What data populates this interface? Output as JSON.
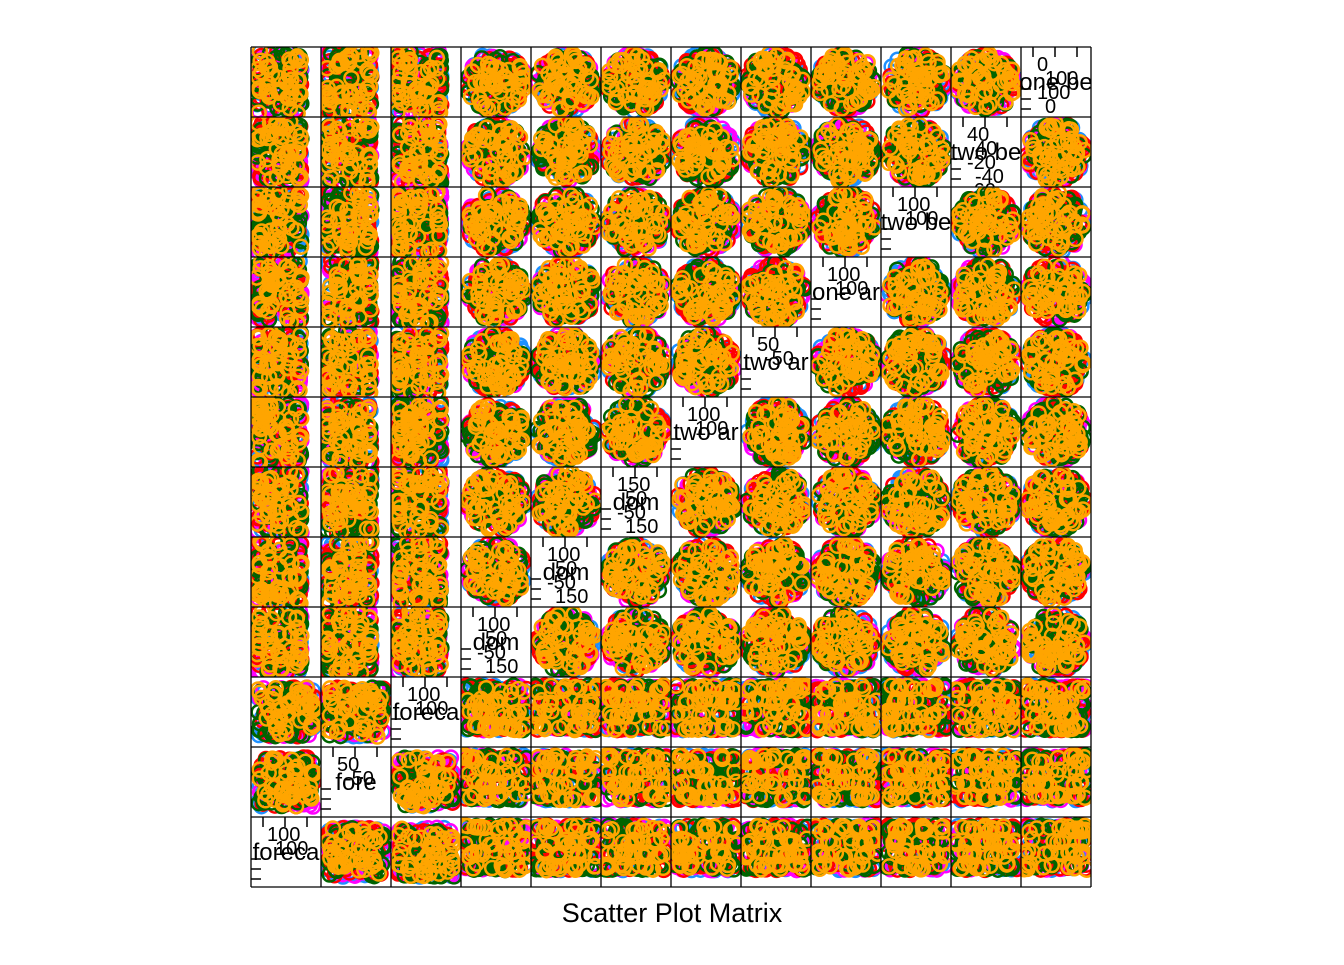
{
  "chart_data": {
    "type": "scatter",
    "kind": "scatter-plot-matrix",
    "xlabel": "Scatter Plot Matrix",
    "grid": false,
    "legend": "none",
    "diagonal_labels_visible": [
      "foreca",
      "fore",
      "foreca",
      "dom",
      "dom",
      "dom",
      "two ar",
      "two ar",
      "one ar",
      "two be",
      "two be",
      "one be"
    ],
    "diagonal_ticks": [
      {
        "index": 0,
        "labels": [
          "100",
          "100"
        ]
      },
      {
        "index": 1,
        "labels": [
          "50",
          "-50"
        ]
      },
      {
        "index": 2,
        "labels": [
          "100",
          "100"
        ]
      },
      {
        "index": 3,
        "labels": [
          "100",
          "50",
          "-50",
          "150"
        ]
      },
      {
        "index": 4,
        "labels": [
          "100",
          "50",
          "-50",
          "150"
        ]
      },
      {
        "index": 5,
        "labels": [
          "150",
          "50",
          "-50",
          "150"
        ]
      },
      {
        "index": 6,
        "labels": [
          "100",
          "100"
        ]
      },
      {
        "index": 7,
        "labels": [
          "50",
          "-50"
        ]
      },
      {
        "index": 8,
        "labels": [
          "100",
          "100"
        ]
      },
      {
        "index": 9,
        "labels": [
          "100",
          "100"
        ]
      },
      {
        "index": 10,
        "labels": [
          "40",
          "40",
          "-20",
          "-40",
          "-60"
        ]
      },
      {
        "index": 11,
        "labels": [
          "0",
          "100",
          "100",
          "0"
        ]
      }
    ],
    "series_colors": [
      "#1e90ff",
      "#ff00ff",
      "#ff0000",
      "#006400",
      "#ffa500"
    ],
    "series": [
      {
        "color": "#1e90ff",
        "points_per_panel": 50
      },
      {
        "color": "#ff00ff",
        "points_per_panel": 50
      },
      {
        "color": "#ff0000",
        "points_per_panel": 50
      },
      {
        "color": "#006400",
        "points_per_panel": 50
      },
      {
        "color": "#ffa500",
        "points_per_panel": 50
      }
    ],
    "matrix_size": 12
  }
}
